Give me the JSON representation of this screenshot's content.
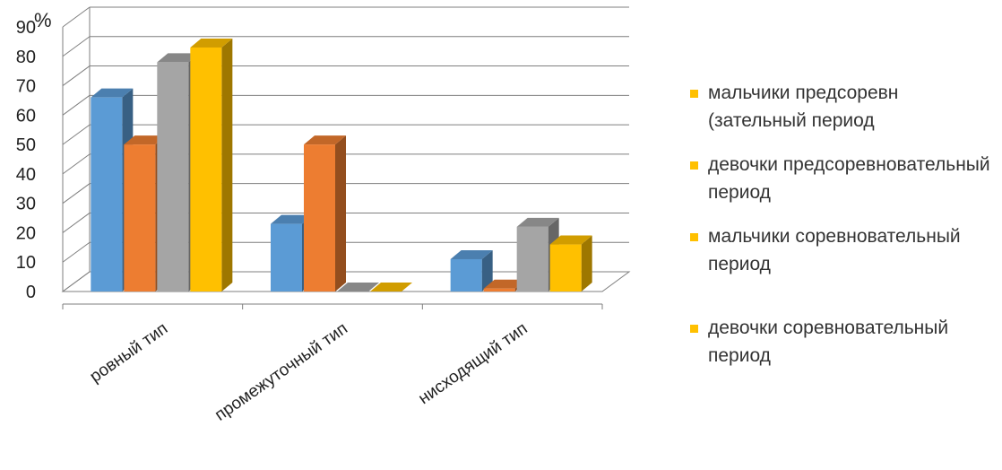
{
  "chart_data": {
    "type": "bar",
    "ylabel": "%",
    "ylim": [
      0,
      90
    ],
    "yticks": [
      0,
      10,
      20,
      30,
      40,
      50,
      60,
      70,
      80,
      90
    ],
    "grid": true,
    "legend_position": "right",
    "categories": [
      "ровный тип",
      "промежуточный тип",
      "нисходящий тип"
    ],
    "series": [
      {
        "name": "мальчики предсоревн (зательный период",
        "values": [
          66,
          23,
          11
        ],
        "color": "#5B9BD5"
      },
      {
        "name": "девочки предсоревновательный период",
        "values": [
          50,
          50,
          1
        ],
        "color": "#ED7D31"
      },
      {
        "name": "мальчики соревновательный период",
        "values": [
          78,
          0,
          22
        ],
        "color": "#A5A5A5"
      },
      {
        "name": "девочки соревновательный период",
        "values": [
          83,
          0,
          16
        ],
        "color": "#FFC000"
      }
    ],
    "legend_swatch_color": "#FFC000"
  }
}
